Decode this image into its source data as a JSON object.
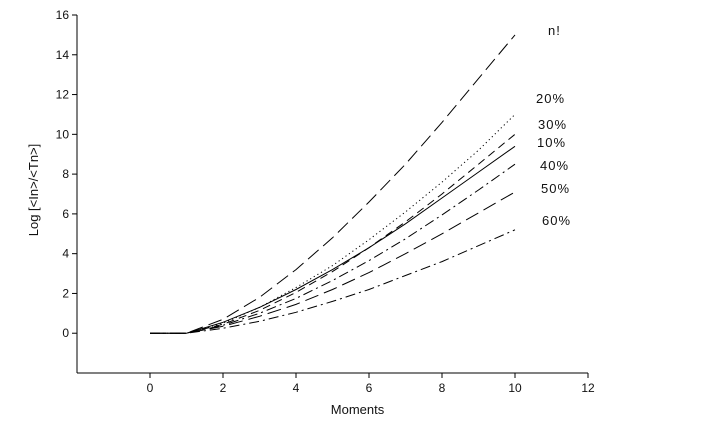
{
  "chart_data": {
    "type": "line",
    "title": "",
    "xlabel": "Moments",
    "ylabel": "Log [<In>/<Tn>]",
    "xlim": [
      -2,
      12
    ],
    "ylim": [
      -2,
      16
    ],
    "x_ticks": [
      0,
      2,
      4,
      6,
      8,
      10,
      12
    ],
    "y_ticks": [
      0,
      2,
      4,
      6,
      8,
      10,
      12,
      14,
      16
    ],
    "x_tick_labels": [
      "0",
      "2",
      "4",
      "6",
      "8",
      "10",
      "12"
    ],
    "y_tick_labels": [
      "0",
      "2",
      "4",
      "6",
      "8",
      "10",
      "12",
      "14",
      "16"
    ],
    "grid": false,
    "legend": "inline labels at right end of each curve",
    "series": [
      {
        "name": "n!",
        "line_style": "long-dash",
        "x": [
          0,
          1,
          2,
          3,
          4,
          5,
          6,
          7,
          8,
          9,
          10
        ],
        "y": [
          0,
          0,
          0.7,
          1.8,
          3.2,
          4.8,
          6.6,
          8.5,
          10.6,
          12.8,
          15.0
        ]
      },
      {
        "name": "20%",
        "line_style": "dotted",
        "x": [
          0,
          1,
          2,
          3,
          4,
          5,
          6,
          7,
          8,
          9,
          10
        ],
        "y": [
          0,
          0,
          0.5,
          1.3,
          2.3,
          3.4,
          4.7,
          6.1,
          7.6,
          9.2,
          11.0
        ]
      },
      {
        "name": "30%",
        "line_style": "dash",
        "x": [
          0,
          1,
          2,
          3,
          4,
          5,
          6,
          7,
          8,
          9,
          10
        ],
        "y": [
          0,
          0,
          0.45,
          1.15,
          2.05,
          3.1,
          4.3,
          5.6,
          7.0,
          8.5,
          10.0
        ]
      },
      {
        "name": "10%",
        "line_style": "solid",
        "x": [
          0,
          1,
          2,
          3,
          4,
          5,
          6,
          7,
          8,
          9,
          10
        ],
        "y": [
          0,
          0,
          0.55,
          1.3,
          2.2,
          3.2,
          4.3,
          5.5,
          6.8,
          8.1,
          9.4
        ]
      },
      {
        "name": "40%",
        "line_style": "dash-dot",
        "x": [
          0,
          1,
          2,
          3,
          4,
          5,
          6,
          7,
          8,
          9,
          10
        ],
        "y": [
          0,
          0,
          0.4,
          1.0,
          1.75,
          2.65,
          3.65,
          4.75,
          5.95,
          7.2,
          8.5
        ]
      },
      {
        "name": "50%",
        "line_style": "long-dash",
        "x": [
          0,
          1,
          2,
          3,
          4,
          5,
          6,
          7,
          8,
          9,
          10
        ],
        "y": [
          0,
          0,
          0.35,
          0.85,
          1.45,
          2.2,
          3.05,
          4.0,
          5.0,
          6.05,
          7.1
        ]
      },
      {
        "name": "60%",
        "line_style": "dash-dot",
        "x": [
          0,
          1,
          2,
          3,
          4,
          5,
          6,
          7,
          8,
          9,
          10
        ],
        "y": [
          0,
          0,
          0.25,
          0.6,
          1.05,
          1.6,
          2.2,
          2.9,
          3.6,
          4.4,
          5.2
        ]
      }
    ]
  }
}
